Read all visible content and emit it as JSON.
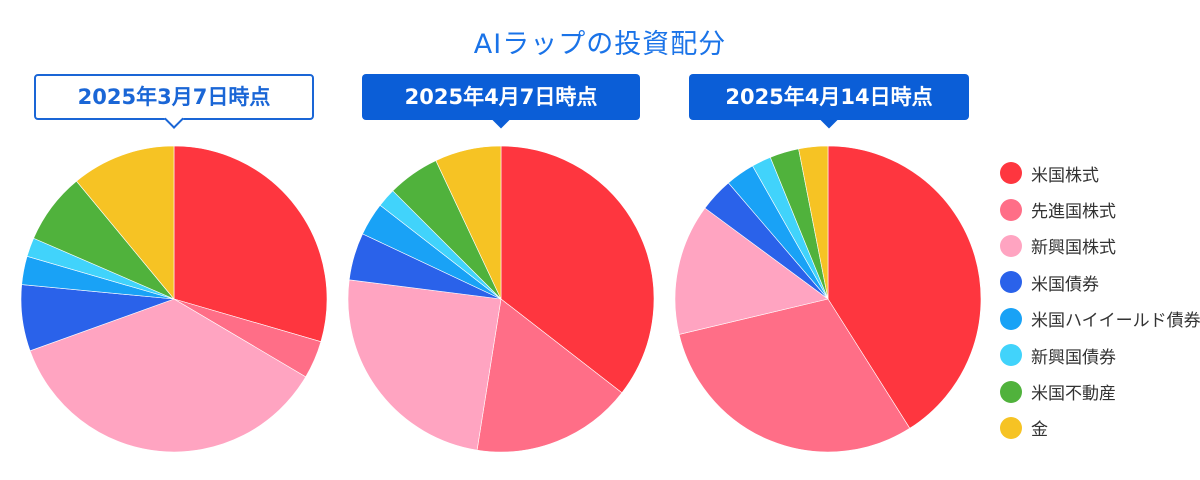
{
  "chart_title": "AIラップの投資配分",
  "colors": {
    "米国株式": "#fe363f",
    "先進国株式": "#ff6e87",
    "新興国株式": "#ffa4c1",
    "米国債券": "#2a62ea",
    "米国ハイイールド債券": "#19a2f6",
    "新興国債券": "#41d3fb",
    "米国不動産": "#50b23c",
    "金": "#f6c324"
  },
  "chart_data": [
    {
      "type": "pie",
      "title": "2025年3月7日時点",
      "style": "outline",
      "categories": [
        "米国株式",
        "先進国株式",
        "新興国株式",
        "米国債券",
        "米国ハイイールド債券",
        "新興国債券",
        "米国不動産",
        "金"
      ],
      "values": [
        29.5,
        4.0,
        36.0,
        7.0,
        3.0,
        2.0,
        7.5,
        11.0
      ]
    },
    {
      "type": "pie",
      "title": "2025年4月7日時点",
      "style": "filled",
      "categories": [
        "米国株式",
        "先進国株式",
        "新興国株式",
        "米国債券",
        "米国ハイイールド債券",
        "新興国債券",
        "米国不動産",
        "金"
      ],
      "values": [
        35.5,
        17.0,
        24.5,
        5.0,
        3.5,
        2.0,
        5.5,
        7.0
      ]
    },
    {
      "type": "pie",
      "title": "2025年4月14日時点",
      "style": "filled",
      "categories": [
        "米国株式",
        "先進国株式",
        "新興国株式",
        "米国債券",
        "米国ハイイールド債券",
        "新興国債券",
        "米国不動産",
        "金"
      ],
      "values": [
        40.0,
        29.5,
        13.5,
        3.5,
        3.0,
        2.0,
        3.0,
        3.0
      ]
    }
  ],
  "legend": [
    "米国株式",
    "先進国株式",
    "新興国株式",
    "米国債券",
    "米国ハイイールド債券",
    "新興国債券",
    "米国不動産",
    "金"
  ]
}
